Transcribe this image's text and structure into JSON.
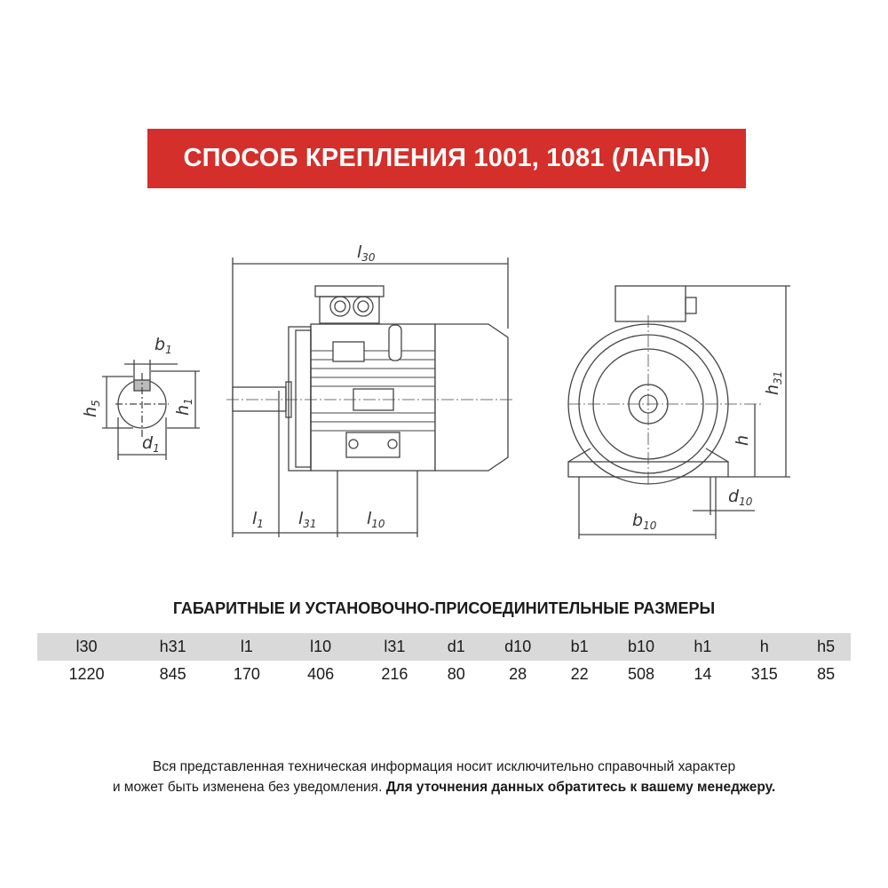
{
  "banner": {
    "title": "СПОСОБ КРЕПЛЕНИЯ 1001, 1081 (ЛАПЫ)",
    "color": "#d42f2a"
  },
  "drawing": {
    "labels": {
      "l30": {
        "main": "l",
        "sub": "30"
      },
      "l1": {
        "main": "l",
        "sub": "1"
      },
      "l31": {
        "main": "l",
        "sub": "31"
      },
      "l10": {
        "main": "l",
        "sub": "10"
      },
      "b1": {
        "main": "b",
        "sub": "1"
      },
      "h5": {
        "main": "h",
        "sub": "5"
      },
      "h1": {
        "main": "h",
        "sub": "1"
      },
      "d1": {
        "main": "d",
        "sub": "1"
      },
      "h31": {
        "main": "h",
        "sub": "31"
      },
      "h": {
        "main": "h",
        "sub": ""
      },
      "d10": {
        "main": "d",
        "sub": "10"
      },
      "b10": {
        "main": "b",
        "sub": "10"
      }
    }
  },
  "table": {
    "heading": "ГАБАРИТНЫЕ И УСТАНОВОЧНО-ПРИСОЕДИНИТЕЛЬНЫЕ РАЗМЕРЫ",
    "headers": [
      "l30",
      "h31",
      "l1",
      "l10",
      "l31",
      "d1",
      "d10",
      "b1",
      "b10",
      "h1",
      "h",
      "h5"
    ],
    "values": [
      "1220",
      "845",
      "170",
      "406",
      "216",
      "80",
      "28",
      "22",
      "508",
      "14",
      "315",
      "85"
    ]
  },
  "footer": {
    "line1": "Вся представленная техническая информация носит исключительно справочный характер",
    "line2_regular": "и может быть изменена без уведомления. ",
    "line2_bold": "Для уточнения данных обратитесь к вашему менеджеру."
  }
}
